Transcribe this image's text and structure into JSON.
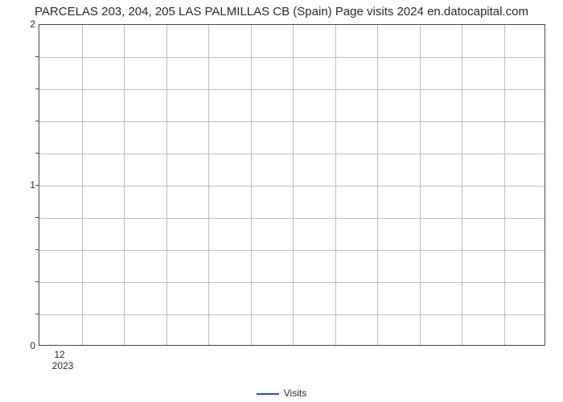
{
  "chart": {
    "type": "line",
    "title": "PARCELAS 203, 204, 205 LAS PALMILLAS CB (Spain) Page visits 2024 en.datocapital.com",
    "title_fontsize": 15,
    "title_color": "#2a2a2a",
    "background_color": "#ffffff",
    "plot_border_color": "#4a4a4a",
    "grid_color": "#bdbdbd",
    "y": {
      "min": 0,
      "max": 2,
      "major_ticks": [
        0,
        1,
        2
      ],
      "minor_step": 0.2,
      "label_fontsize": 12
    },
    "x": {
      "categories": [
        "12"
      ],
      "year_label": "2023",
      "major_count": 12,
      "label_fontsize": 12
    },
    "series": [
      {
        "name": "Visits",
        "color": "#2e4da0",
        "line_width": 2,
        "values": []
      }
    ],
    "legend": {
      "label": "Visits",
      "position": "bottom-center",
      "fontsize": 12
    }
  }
}
